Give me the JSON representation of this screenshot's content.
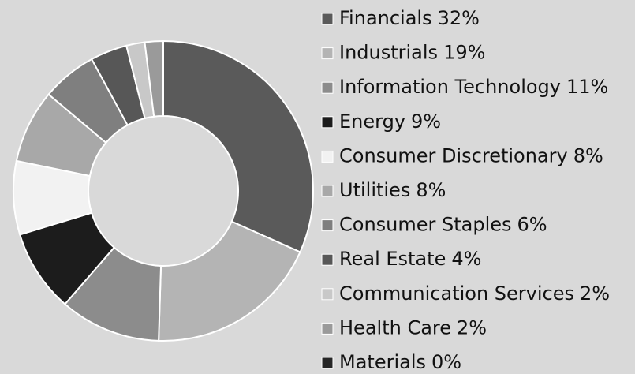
{
  "chart_data": {
    "type": "donut",
    "categories": [
      "Financials",
      "Industrials",
      "Information Technology",
      "Energy",
      "Consumer Discretionary",
      "Utilities",
      "Consumer Staples",
      "Real Estate",
      "Communication Services",
      "Health Care",
      "Materials"
    ],
    "values": [
      32,
      19,
      11,
      9,
      8,
      8,
      6,
      4,
      2,
      2,
      0
    ],
    "value_labels": [
      "32%",
      "19%",
      "11%",
      "9%",
      "8%",
      "8%",
      "6%",
      "4%",
      "2%",
      "2%",
      "0%"
    ],
    "colors": [
      "#5a5a5a",
      "#b4b4b4",
      "#8c8c8c",
      "#1c1c1c",
      "#f2f2f2",
      "#a8a8a8",
      "#7f7f7f",
      "#575757",
      "#c8c8c8",
      "#9a9a9a",
      "#262626"
    ],
    "legend": "right"
  }
}
